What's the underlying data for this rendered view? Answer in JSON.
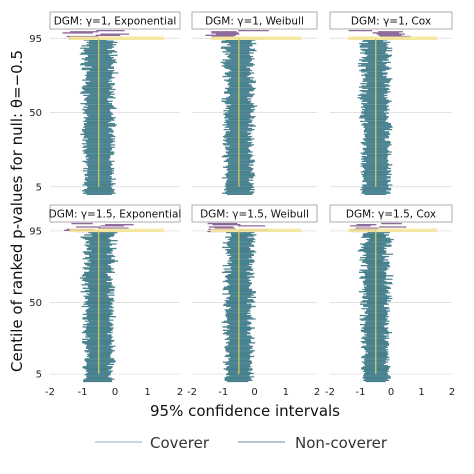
{
  "chart_data": {
    "type": "zip-plot",
    "ylabel": "Centile of ranked p-values for null: θ=−0.5",
    "xlabel": "95% confidence intervals",
    "x_ticks": [
      "-2",
      "-1",
      "0",
      "1",
      "2"
    ],
    "xlim": [
      -2,
      2
    ],
    "y_ticks": [
      "5",
      "50",
      "95"
    ],
    "ylim": [
      0,
      100
    ],
    "true_value": -0.5,
    "legend": {
      "position": "bottom",
      "items": [
        {
          "label": "Coverer",
          "color": "#b7ccd3"
        },
        {
          "label": "Non-coverer",
          "color": "#9eb2c4"
        }
      ]
    },
    "colors": {
      "coverer": "#2d6e7e",
      "non_coverer": "#7b4f8a",
      "mc_band": "#f5e79e",
      "true_line": "#d9cf5a",
      "gridline": "#d9d9d9"
    },
    "panels": [
      {
        "title": "DGM: γ=1, Exponential",
        "center": -0.5,
        "halfwidth_median": 0.42,
        "jitter": 0.12,
        "coverage_band": [
          94.3,
          95.7
        ]
      },
      {
        "title": "DGM: γ=1, Weibull",
        "center": -0.5,
        "halfwidth_median": 0.42,
        "jitter": 0.12,
        "coverage_band": [
          94.3,
          95.7
        ]
      },
      {
        "title": "DGM: γ=1, Cox",
        "center": -0.5,
        "halfwidth_median": 0.42,
        "jitter": 0.12,
        "coverage_band": [
          94.3,
          95.7
        ]
      },
      {
        "title": "DGM: γ=1.5, Exponential",
        "center": -0.5,
        "halfwidth_median": 0.4,
        "jitter": 0.12,
        "coverage_band": [
          94.6,
          96.2
        ]
      },
      {
        "title": "DGM: γ=1.5, Weibull",
        "center": -0.5,
        "halfwidth_median": 0.4,
        "jitter": 0.12,
        "coverage_band": [
          94.6,
          96.2
        ]
      },
      {
        "title": "DGM: γ=1.5, Cox",
        "center": -0.5,
        "halfwidth_median": 0.4,
        "jitter": 0.12,
        "coverage_band": [
          94.6,
          96.2
        ]
      }
    ]
  }
}
